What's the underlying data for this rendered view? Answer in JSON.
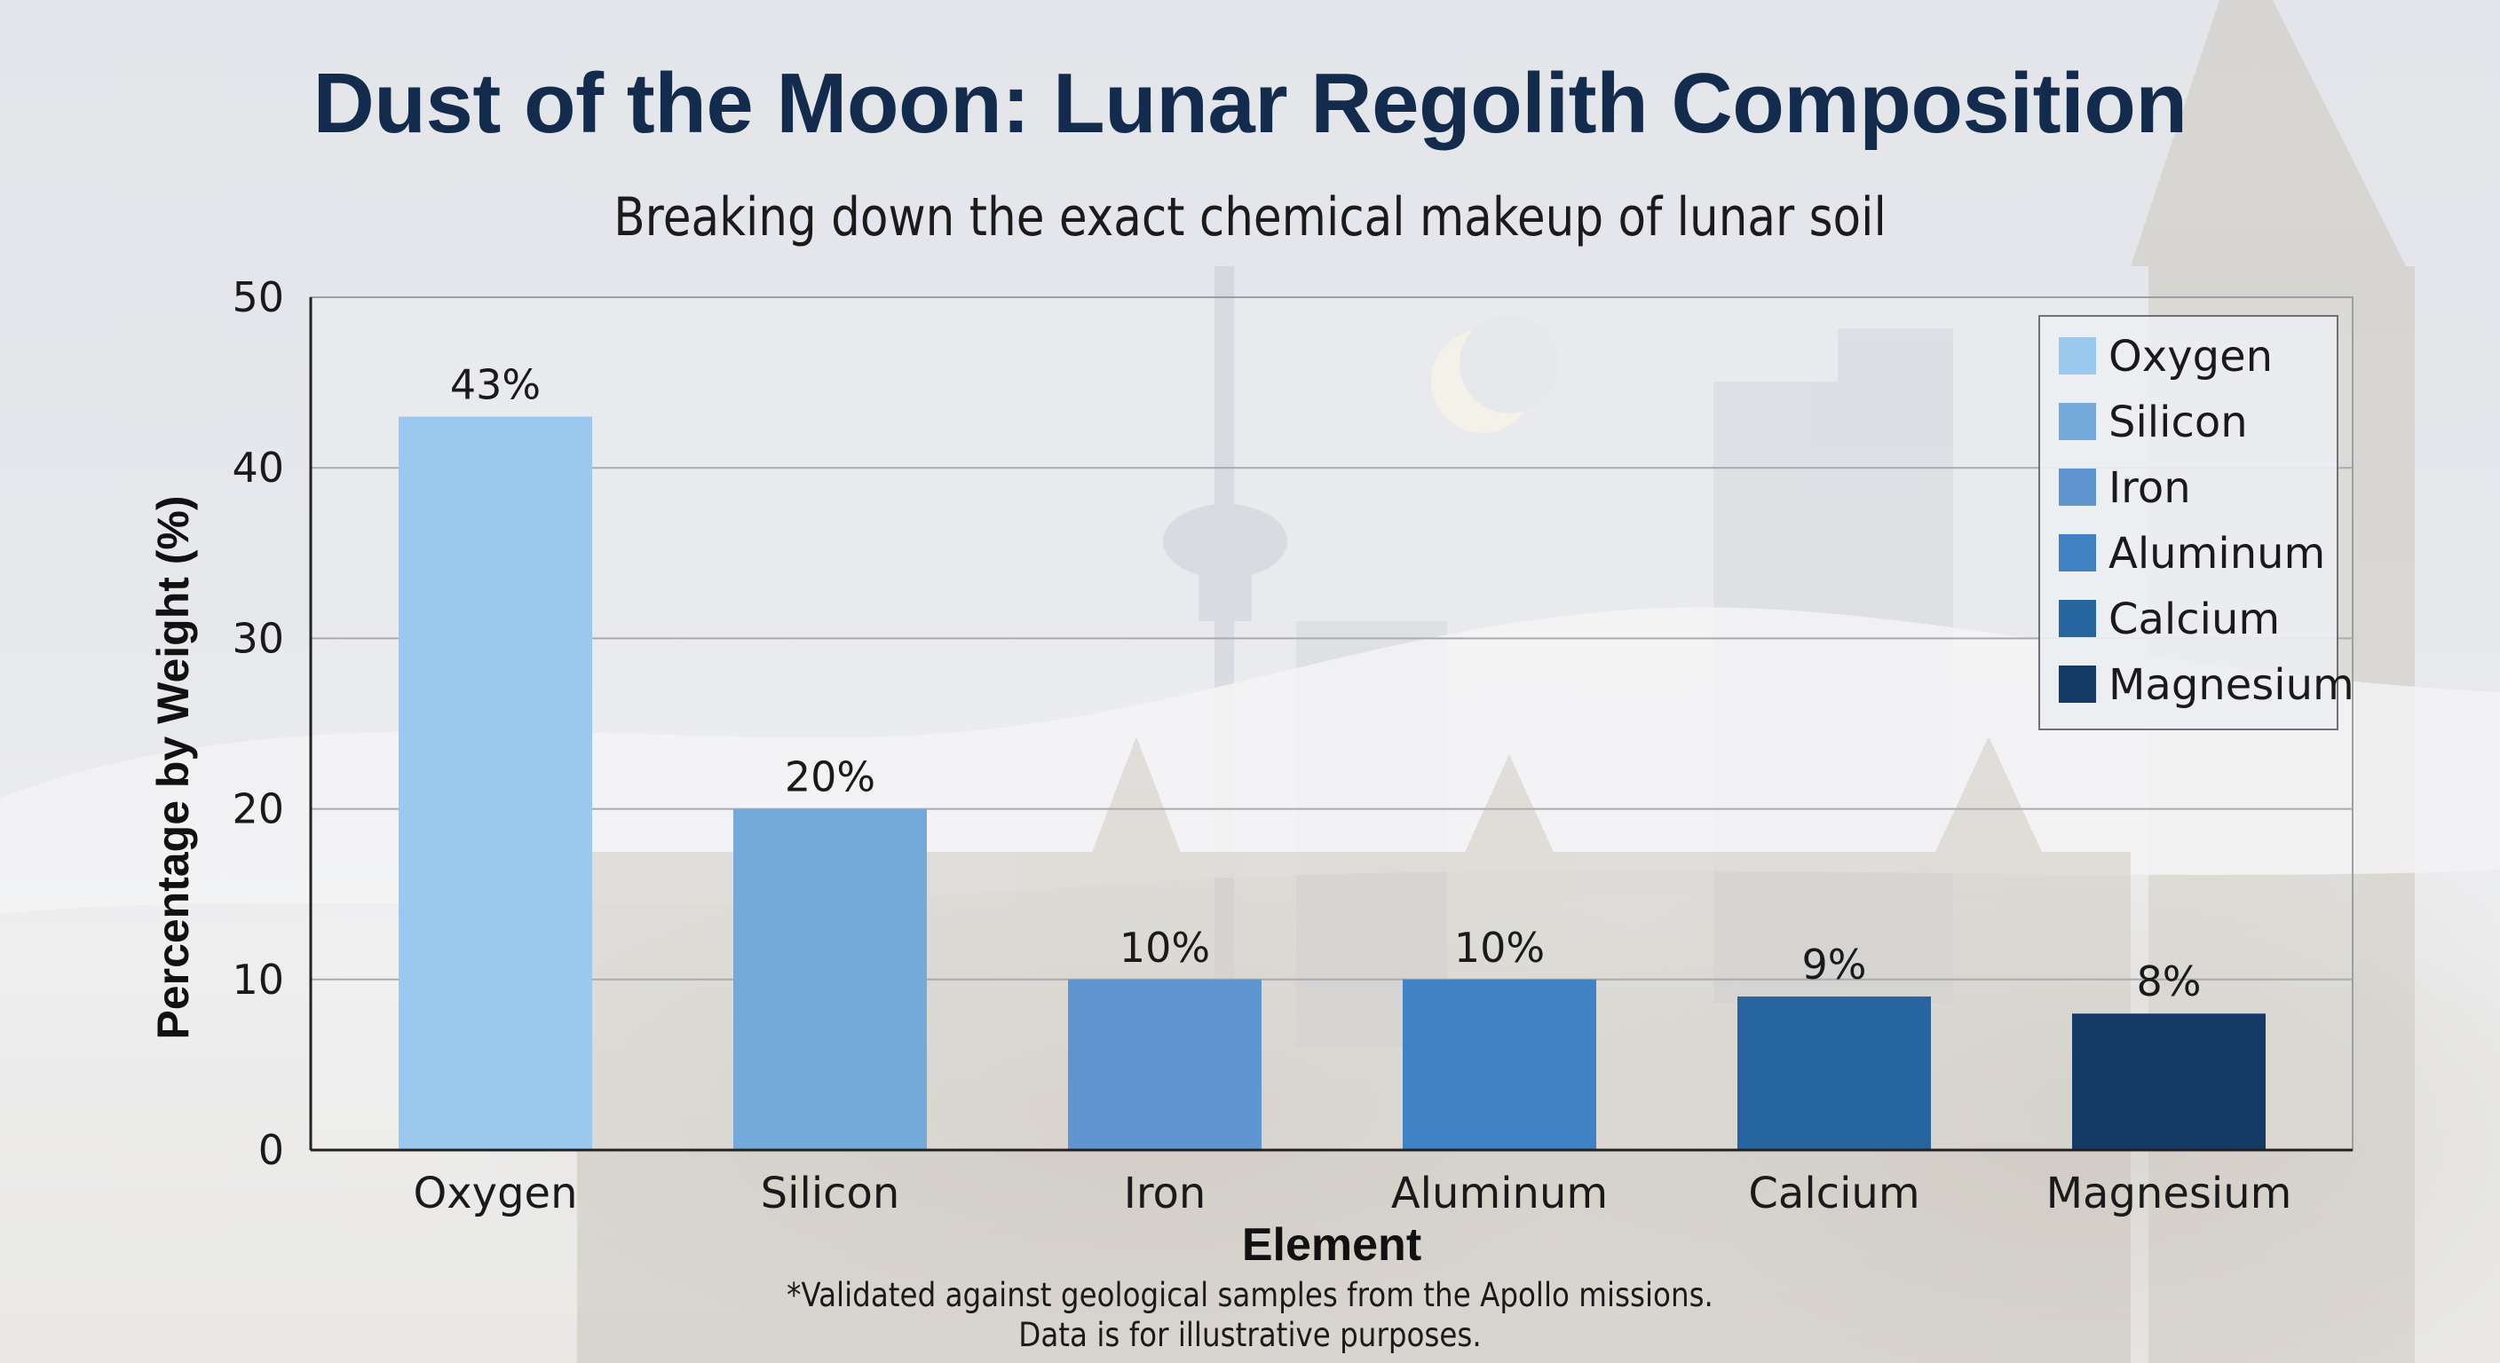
{
  "title": "Dust of the Moon: Lunar Regolith Composition",
  "subtitle": "Breaking down the exact chemical makeup of lunar soil",
  "footnote_line1": "*Validated against geological samples from the Apollo missions.",
  "footnote_line2": "Data is for illustrative purposes.",
  "chart_data": {
    "type": "bar",
    "title": "Dust of the Moon: Lunar Regolith Composition",
    "subtitle": "Breaking down the exact chemical makeup of lunar soil",
    "xlabel": "Element",
    "ylabel": "Percentage by Weight (%)",
    "ylim": [
      0,
      50
    ],
    "yticks": [
      0,
      10,
      20,
      30,
      40,
      50
    ],
    "grid": true,
    "legend_position": "top-right",
    "categories": [
      "Oxygen",
      "Silicon",
      "Iron",
      "Aluminum",
      "Calcium",
      "Magnesium"
    ],
    "values": [
      43,
      20,
      10,
      10,
      9,
      8
    ],
    "data_labels": [
      "43%",
      "20%",
      "10%",
      "10%",
      "9%",
      "8%"
    ],
    "colors": [
      "#9ac8ee",
      "#74aadb",
      "#5f95d0",
      "#3f83c4",
      "#26659f",
      "#163a66"
    ],
    "legend": [
      "Oxygen",
      "Silicon",
      "Iron",
      "Aluminum",
      "Calcium",
      "Magnesium"
    ]
  }
}
